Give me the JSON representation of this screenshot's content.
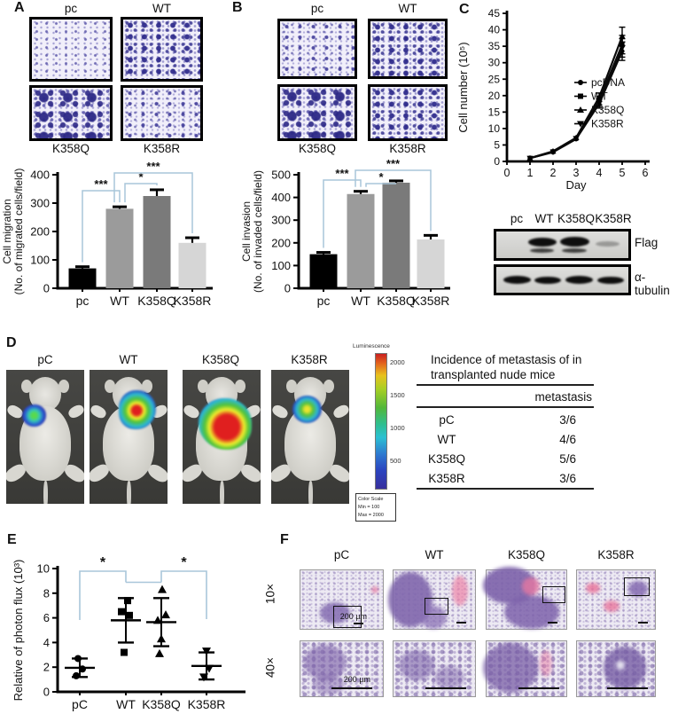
{
  "panels": {
    "a": {
      "label": "A",
      "img_top": [
        "pc",
        "WT"
      ],
      "img_bottom": [
        "K358Q",
        "K358R"
      ]
    },
    "b": {
      "label": "B",
      "img_top": [
        "pc",
        "WT"
      ],
      "img_bottom": [
        "K358Q",
        "K358R"
      ]
    },
    "c": {
      "label": "C",
      "blot": {
        "lanes": [
          "pc",
          "WT",
          "K358Q",
          "K358R"
        ],
        "row1": "Flag",
        "row2": "α-tubulin"
      }
    },
    "d": {
      "label": "D",
      "mice": [
        "pC",
        "WT",
        "K358Q",
        "K358R"
      ],
      "colorbar": {
        "title": "Luminescence",
        "ticks": [
          "2000",
          "1500",
          "1000",
          "500"
        ],
        "box": [
          "Color Scale",
          "Min = 100",
          "Max = 2000"
        ]
      },
      "table": {
        "title1": "Incidence of metastasis of in",
        "title2": "transplanted nude mice",
        "header": "metastasis",
        "rows": [
          {
            "group": "pC",
            "value": "3/6"
          },
          {
            "group": "WT",
            "value": "4/6"
          },
          {
            "group": "K358Q",
            "value": "5/6"
          },
          {
            "group": "K358R",
            "value": "3/6"
          }
        ]
      }
    },
    "e": {
      "label": "E"
    },
    "f": {
      "label": "F",
      "cols": [
        "pC",
        "WT",
        "K358Q",
        "K358R"
      ],
      "rows": [
        "10×",
        "40×"
      ],
      "scale1": "200 µm",
      "scale2": "200 µm"
    }
  },
  "chart_data": [
    {
      "id": "migration",
      "type": "bar",
      "categories": [
        "pc",
        "WT",
        "K358Q",
        "K358R"
      ],
      "values": [
        70,
        280,
        325,
        160
      ],
      "errors": [
        6,
        7,
        22,
        18
      ],
      "bar_colors": [
        "#000000",
        "#9b9b9b",
        "#7a7a7a",
        "#d6d6d6"
      ],
      "ylabel_line1": "Cell migration",
      "ylabel_line2": "(No. of migrated cells/field)",
      "ylim": [
        0,
        400
      ],
      "yticks": [
        0,
        100,
        200,
        300,
        400
      ],
      "significance": [
        {
          "from": 0,
          "to": 1,
          "label": "***"
        },
        {
          "from": 1,
          "to": 2,
          "label": "*"
        },
        {
          "from": 1,
          "to": 3,
          "label": "***"
        }
      ]
    },
    {
      "id": "invasion",
      "type": "bar",
      "categories": [
        "pc",
        "WT",
        "K358Q",
        "K358R"
      ],
      "values": [
        150,
        415,
        465,
        215
      ],
      "errors": [
        8,
        12,
        8,
        18
      ],
      "bar_colors": [
        "#000000",
        "#9b9b9b",
        "#7a7a7a",
        "#d6d6d6"
      ],
      "ylabel_line1": "Cell invasion",
      "ylabel_line2": "(No. of invaded cells/field)",
      "ylim": [
        0,
        500
      ],
      "yticks": [
        0,
        100,
        200,
        300,
        400,
        500
      ],
      "significance": [
        {
          "from": 0,
          "to": 1,
          "label": "***"
        },
        {
          "from": 1,
          "to": 2,
          "label": "*"
        },
        {
          "from": 1,
          "to": 3,
          "label": "***"
        }
      ]
    },
    {
      "id": "growth",
      "type": "line",
      "x": [
        1,
        2,
        3,
        4,
        5
      ],
      "series": [
        {
          "name": "pcDNA",
          "values": [
            1,
            2.8,
            6.8,
            17.5,
            33.5
          ]
        },
        {
          "name": "WT",
          "values": [
            1,
            3,
            7,
            18.5,
            35.5
          ]
        },
        {
          "name": "K358Q",
          "values": [
            1,
            3.1,
            7.2,
            19.5,
            38
          ]
        },
        {
          "name": "K358R",
          "values": [
            1,
            2.9,
            7,
            18,
            34.5
          ]
        }
      ],
      "yerr": [
        0.2,
        0.3,
        0.5,
        1.3,
        2.8
      ],
      "markers": [
        "circle",
        "square",
        "triangle-up",
        "triangle-down"
      ],
      "xlabel": "Day",
      "ylabel": "Cell number (10⁵)",
      "xlim": [
        0,
        6
      ],
      "xticks": [
        0,
        1,
        2,
        3,
        4,
        5,
        6
      ],
      "ylim": [
        0,
        45
      ],
      "yticks": [
        0,
        5,
        10,
        15,
        20,
        25,
        30,
        35,
        40,
        45
      ],
      "legend_position": "right"
    },
    {
      "id": "photon_flux",
      "type": "scatter",
      "categories": [
        "pC",
        "WT",
        "K358Q",
        "K358R"
      ],
      "markers": [
        "circle",
        "square",
        "triangle-up",
        "triangle-down"
      ],
      "points": [
        [
          [
            -2,
            2.7
          ],
          [
            3,
            1.85
          ],
          [
            -4,
            1.3
          ]
        ],
        [
          [
            2,
            7.4
          ],
          [
            -5,
            6.5
          ],
          [
            4,
            6.2
          ],
          [
            -2,
            3.2
          ]
        ],
        [
          [
            1,
            8.3
          ],
          [
            5,
            6.25
          ],
          [
            -4,
            5.8
          ],
          [
            0,
            4.3
          ],
          [
            -2,
            3.1
          ]
        ],
        [
          [
            0,
            3.3
          ],
          [
            3,
            1.9
          ],
          [
            -3,
            1.2
          ]
        ]
      ],
      "means": [
        1.95,
        5.8,
        5.65,
        2.1
      ],
      "whiskers": [
        [
          1.2,
          2.7
        ],
        [
          4.0,
          7.6
        ],
        [
          3.7,
          7.6
        ],
        [
          1.0,
          3.2
        ]
      ],
      "ylabel": "Relative of photon flux (10³)",
      "ylim": [
        0,
        10
      ],
      "yticks": [
        0,
        2,
        4,
        6,
        8,
        10
      ],
      "significance": [
        {
          "from": 0,
          "to": 1,
          "label": "*"
        },
        {
          "from": 2,
          "to": 3,
          "label": "*"
        }
      ]
    }
  ],
  "colors": {
    "sig_bracket": "#a9c6da",
    "axis": "#000000"
  }
}
